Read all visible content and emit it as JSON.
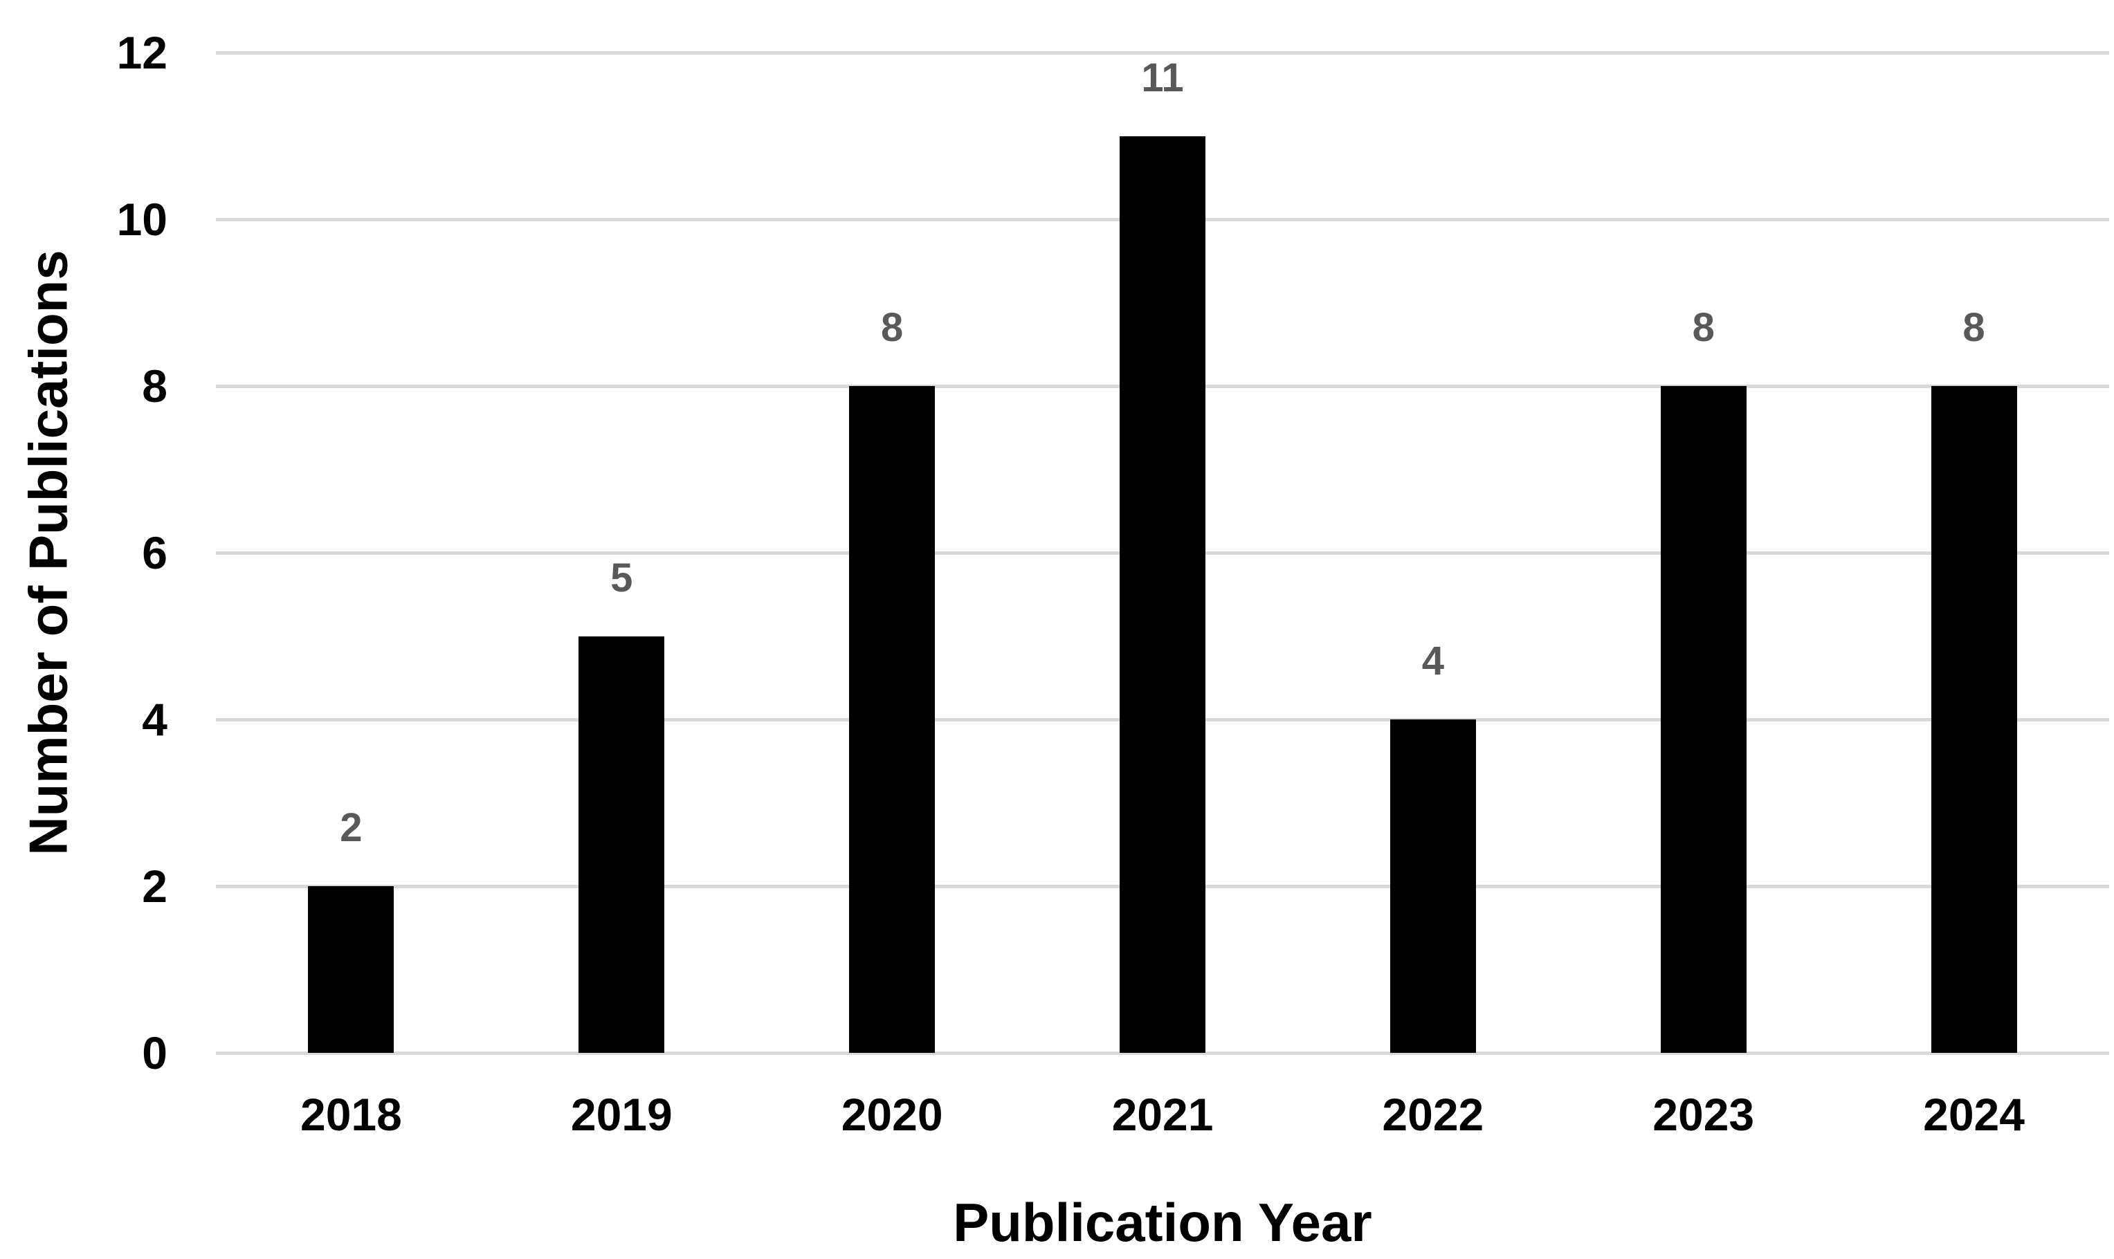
{
  "chart_data": {
    "type": "bar",
    "categories": [
      "2018",
      "2019",
      "2020",
      "2021",
      "2022",
      "2023",
      "2024"
    ],
    "values": [
      2,
      5,
      8,
      11,
      4,
      8,
      8
    ],
    "data_labels": [
      "2",
      "5",
      "8",
      "11",
      "4",
      "8",
      "8"
    ],
    "title": "",
    "xlabel": "Publication Year",
    "ylabel": "Number of Publications",
    "ylim": [
      0,
      12
    ],
    "yticks": [
      0,
      2,
      4,
      6,
      8,
      10,
      12
    ],
    "grid": true,
    "legend": false,
    "colors": {
      "bar": "#000000",
      "gridline": "#d9d9d9",
      "tick_label": "#000000",
      "data_label": "#595959",
      "background": "#ffffff"
    }
  }
}
